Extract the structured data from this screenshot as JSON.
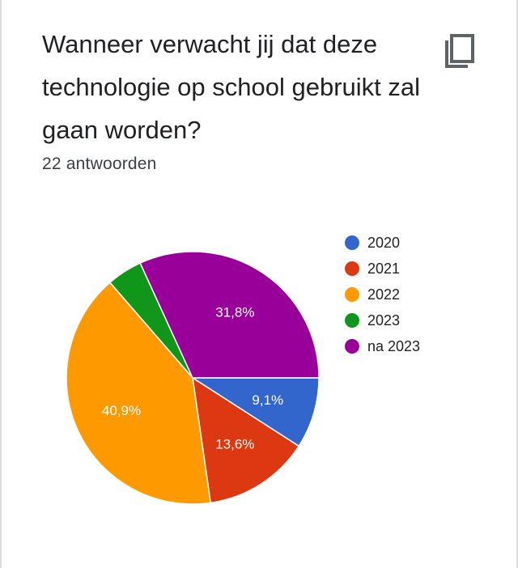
{
  "question": {
    "title": "Wanneer verwacht jij dat deze technologie op school gebruikt zal gaan worden?",
    "response_count": "22 antwoorden",
    "copy_icon": "copy-icon"
  },
  "chart_data": {
    "type": "pie",
    "categories": [
      "2020",
      "2021",
      "2022",
      "2023",
      "na 2023"
    ],
    "values": [
      2,
      3,
      9,
      1,
      7
    ],
    "slice_labels": [
      "9,1%",
      "13,6%",
      "40,9%",
      "",
      "31,8%"
    ],
    "colors": [
      "#3366cc",
      "#dc3912",
      "#ff9900",
      "#109618",
      "#990099"
    ],
    "legend_position": "right"
  }
}
